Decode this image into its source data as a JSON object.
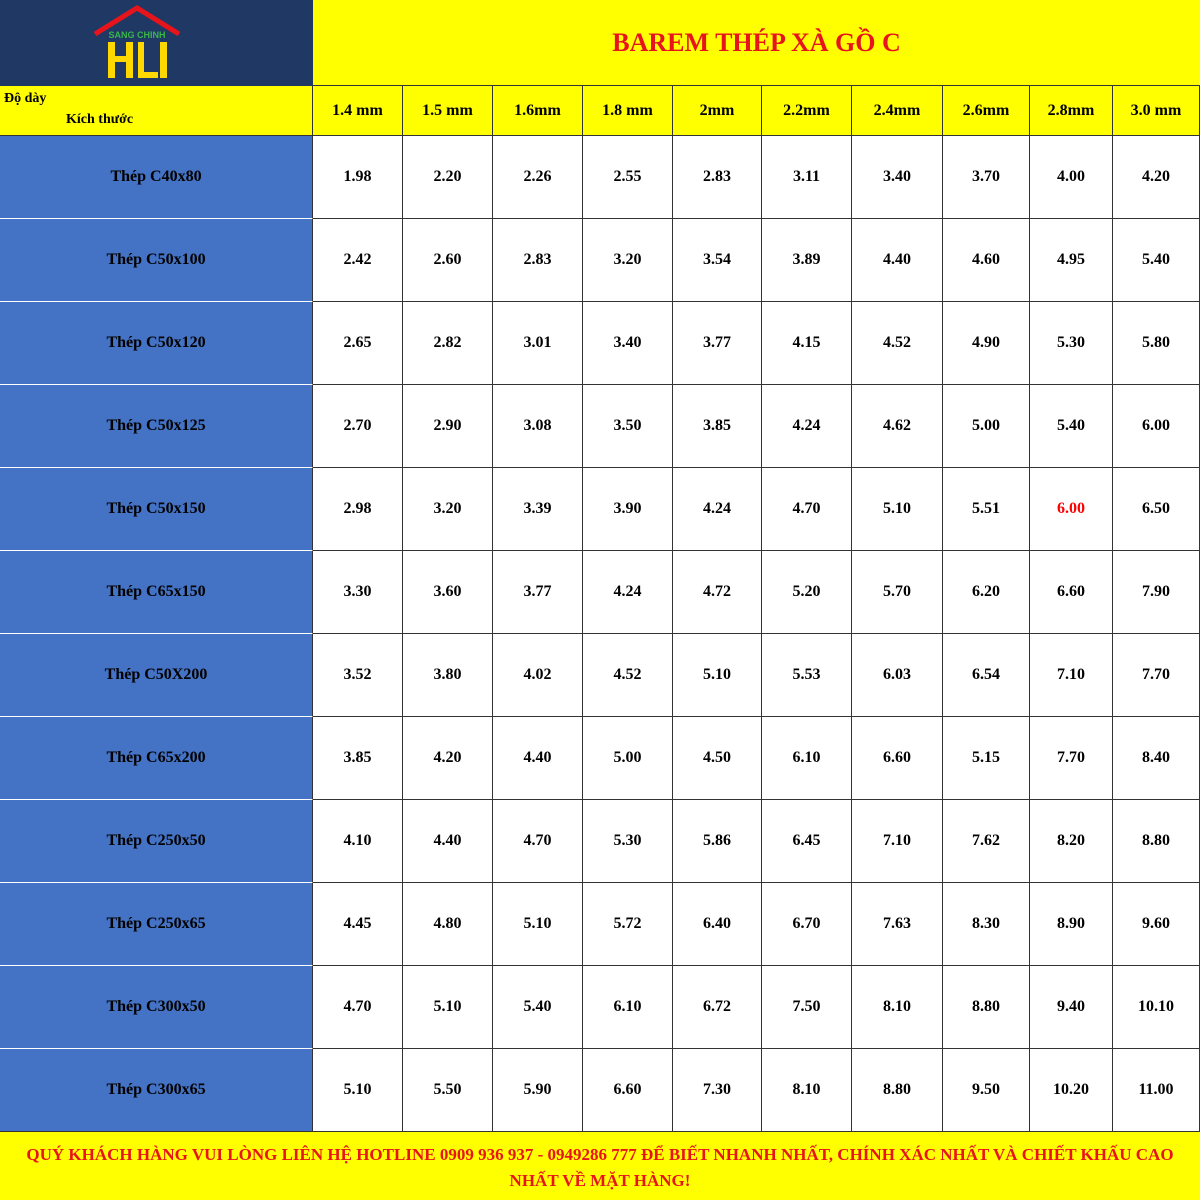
{
  "header": {
    "brand": "SANG CHINH",
    "title": "BAREM THÉP XÀ GỒ C"
  },
  "table": {
    "corner": [
      "Độ dày",
      "Kích thước"
    ],
    "columns": [
      "1.4 mm",
      "1.5 mm",
      "1.6mm",
      "1.8 mm",
      "2mm",
      "2.2mm",
      "2.4mm",
      "2.6mm",
      "2.8mm",
      "3.0 mm"
    ],
    "rows": [
      {
        "label": "Thép C40x80",
        "values": [
          "1.98",
          "2.20",
          "2.26",
          "2.55",
          "2.83",
          "3.11",
          "3.40",
          "3.70",
          "4.00",
          "4.20"
        ]
      },
      {
        "label": "Thép C50x100",
        "values": [
          "2.42",
          "2.60",
          "2.83",
          "3.20",
          "3.54",
          "3.89",
          "4.40",
          "4.60",
          "4.95",
          "5.40"
        ]
      },
      {
        "label": "Thép C50x120",
        "values": [
          "2.65",
          "2.82",
          "3.01",
          "3.40",
          "3.77",
          "4.15",
          "4.52",
          "4.90",
          "5.30",
          "5.80"
        ]
      },
      {
        "label": "Thép C50x125",
        "values": [
          "2.70",
          "2.90",
          "3.08",
          "3.50",
          "3.85",
          "4.24",
          "4.62",
          "5.00",
          "5.40",
          "6.00"
        ]
      },
      {
        "label": "Thép C50x150",
        "values": [
          "2.98",
          "3.20",
          "3.39",
          "3.90",
          "4.24",
          "4.70",
          "5.10",
          "5.51",
          "6.00",
          "6.50"
        ]
      },
      {
        "label": "Thép C65x150",
        "values": [
          "3.30",
          "3.60",
          "3.77",
          "4.24",
          "4.72",
          "5.20",
          "5.70",
          "6.20",
          "6.60",
          "7.90"
        ]
      },
      {
        "label": "Thép C50X200",
        "values": [
          "3.52",
          "3.80",
          "4.02",
          "4.52",
          "5.10",
          "5.53",
          "6.03",
          "6.54",
          "7.10",
          "7.70"
        ]
      },
      {
        "label": "Thép C65x200",
        "values": [
          "3.85",
          "4.20",
          "4.40",
          "5.00",
          "4.50",
          "6.10",
          "6.60",
          "5.15",
          "7.70",
          "8.40"
        ]
      },
      {
        "label": "Thép C250x50",
        "values": [
          "4.10",
          "4.40",
          "4.70",
          "5.30",
          "5.86",
          "6.45",
          "7.10",
          "7.62",
          "8.20",
          "8.80"
        ]
      },
      {
        "label": "Thép C250x65",
        "values": [
          "4.45",
          "4.80",
          "5.10",
          "5.72",
          "6.40",
          "6.70",
          "7.63",
          "8.30",
          "8.90",
          "9.60"
        ]
      },
      {
        "label": "Thép C300x50",
        "values": [
          "4.70",
          "5.10",
          "5.40",
          "6.10",
          "6.72",
          "7.50",
          "8.10",
          "8.80",
          "9.40",
          "10.10"
        ]
      },
      {
        "label": "Thép C300x65",
        "values": [
          "5.10",
          "5.50",
          "5.90",
          "6.60",
          "7.30",
          "8.10",
          "8.80",
          "9.50",
          "10.20",
          "11.00"
        ]
      }
    ],
    "highlight": {
      "row": 4,
      "column": 8,
      "color": "#ff0000"
    }
  },
  "footer": {
    "text": "QUÝ KHÁCH HÀNG VUI LÒNG LIÊN HỆ HOTLINE 0909 936 937 - 0949286 777 ĐỂ BIẾT NHANH NHẤT, CHÍNH XÁC NHẤT VÀ CHIẾT KHẤU CAO NHẤT VỀ MẶT HÀNG!"
  }
}
